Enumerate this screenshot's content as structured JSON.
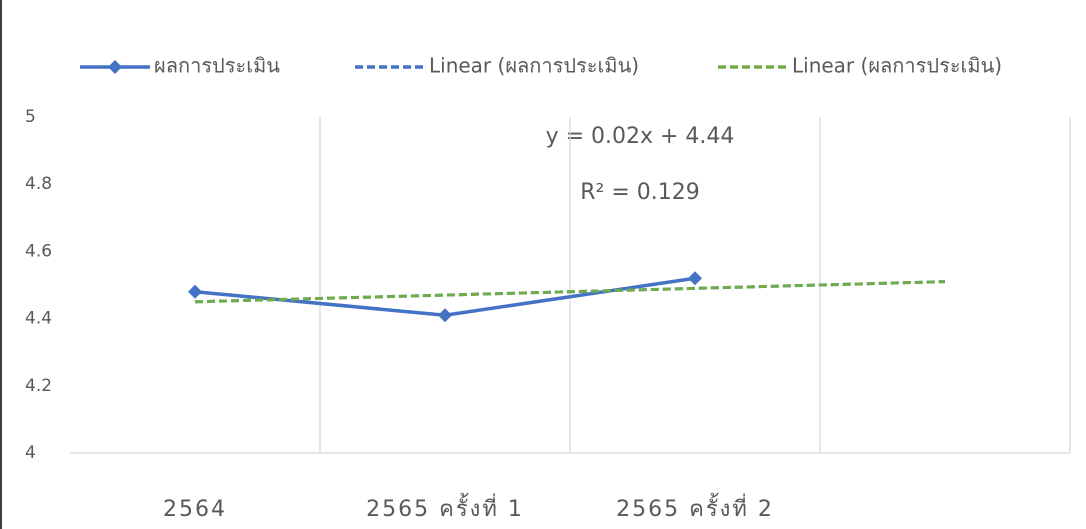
{
  "chart_data": {
    "type": "line",
    "categories": [
      "2564",
      "2565 ครั้งที่ 1",
      "2565 ครั้งที่ 2",
      null
    ],
    "series": [
      {
        "name": "ผลการประเมิน",
        "color": "#4472c4",
        "style": "solid",
        "marker": "diamond",
        "values": [
          4.48,
          4.41,
          4.52,
          null
        ]
      },
      {
        "name": "Linear (ผลการประเมิน)",
        "color": "#4472c4",
        "style": "dashed",
        "values": [
          4.45,
          4.47,
          4.49,
          4.51
        ]
      },
      {
        "name": "Linear (ผลการประเมิน)",
        "color": "#70ad47",
        "style": "dashed",
        "values": [
          4.45,
          4.47,
          4.49,
          4.51
        ]
      }
    ],
    "annotations": [
      "y = 0.02x + 4.44",
      "R² = 0.129"
    ],
    "ylim": [
      4,
      5
    ],
    "yticks": [
      4,
      4.2,
      4.4,
      4.6,
      4.8,
      5
    ],
    "grid": "vertical",
    "legend": "top"
  }
}
